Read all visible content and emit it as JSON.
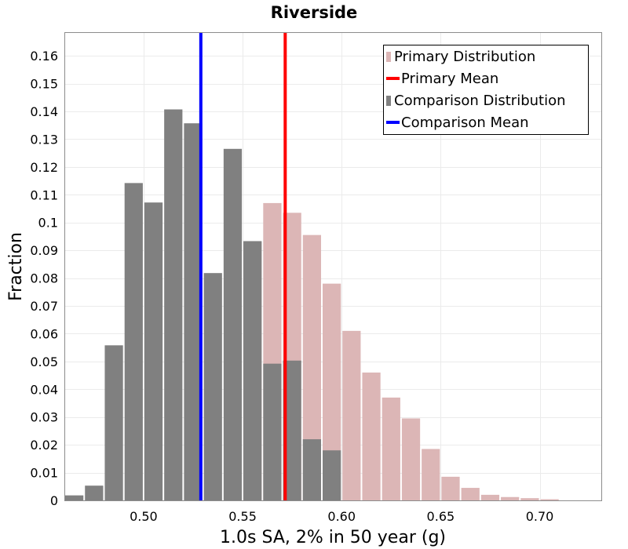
{
  "chart_data": {
    "type": "bar",
    "title": "Riverside",
    "xlabel": "1.0s SA, 2% in 50 year (g)",
    "ylabel": "Fraction",
    "xlim": [
      0.46,
      0.7315
    ],
    "ylim": [
      0,
      0.1685
    ],
    "bin_width": 0.01,
    "x_ticks": [
      0.5,
      0.55,
      0.6,
      0.65,
      0.7
    ],
    "x_tick_labels": [
      "0.50",
      "0.55",
      "0.60",
      "0.65",
      "0.70"
    ],
    "y_ticks": [
      0,
      0.01,
      0.02,
      0.03,
      0.04,
      0.05,
      0.06,
      0.07,
      0.08,
      0.09,
      0.1,
      0.11,
      0.12,
      0.13,
      0.14,
      0.15,
      0.16
    ],
    "y_tick_labels": [
      "0",
      "0.01",
      "0.02",
      "0.03",
      "0.04",
      "0.05",
      "0.06",
      "0.07",
      "0.08",
      "0.09",
      "0.1",
      "0.11",
      "0.12",
      "0.13",
      "0.14",
      "0.15",
      "0.16"
    ],
    "grid": true,
    "legend_position": "top-right",
    "series": [
      {
        "name": "Primary Distribution",
        "kind": "histogram",
        "color": "#dcb6b6",
        "x": [
          0.555,
          0.565,
          0.575,
          0.585,
          0.595,
          0.605,
          0.615,
          0.625,
          0.635,
          0.645,
          0.655,
          0.665,
          0.675,
          0.685,
          0.695,
          0.705
        ],
        "values": [
          0.093,
          0.107,
          0.1035,
          0.0955,
          0.078,
          0.061,
          0.046,
          0.037,
          0.0295,
          0.0185,
          0.0085,
          0.0045,
          0.002,
          0.0012,
          0.0008,
          0.0004
        ]
      },
      {
        "name": "Primary Mean",
        "kind": "vline",
        "color": "#ff0000",
        "x": 0.5715
      },
      {
        "name": "Comparison Distribution",
        "kind": "histogram",
        "color": "#808080",
        "x": [
          0.465,
          0.475,
          0.485,
          0.495,
          0.505,
          0.515,
          0.525,
          0.535,
          0.545,
          0.555,
          0.565,
          0.575,
          0.585,
          0.595
        ],
        "values": [
          0.0018,
          0.0053,
          0.0558,
          0.1142,
          0.1072,
          0.1407,
          0.1357,
          0.0818,
          0.1265,
          0.0933,
          0.0492,
          0.0503,
          0.022,
          0.018
        ]
      },
      {
        "name": "Comparison Mean",
        "kind": "vline",
        "color": "#0000ff",
        "x": 0.5289
      }
    ]
  }
}
